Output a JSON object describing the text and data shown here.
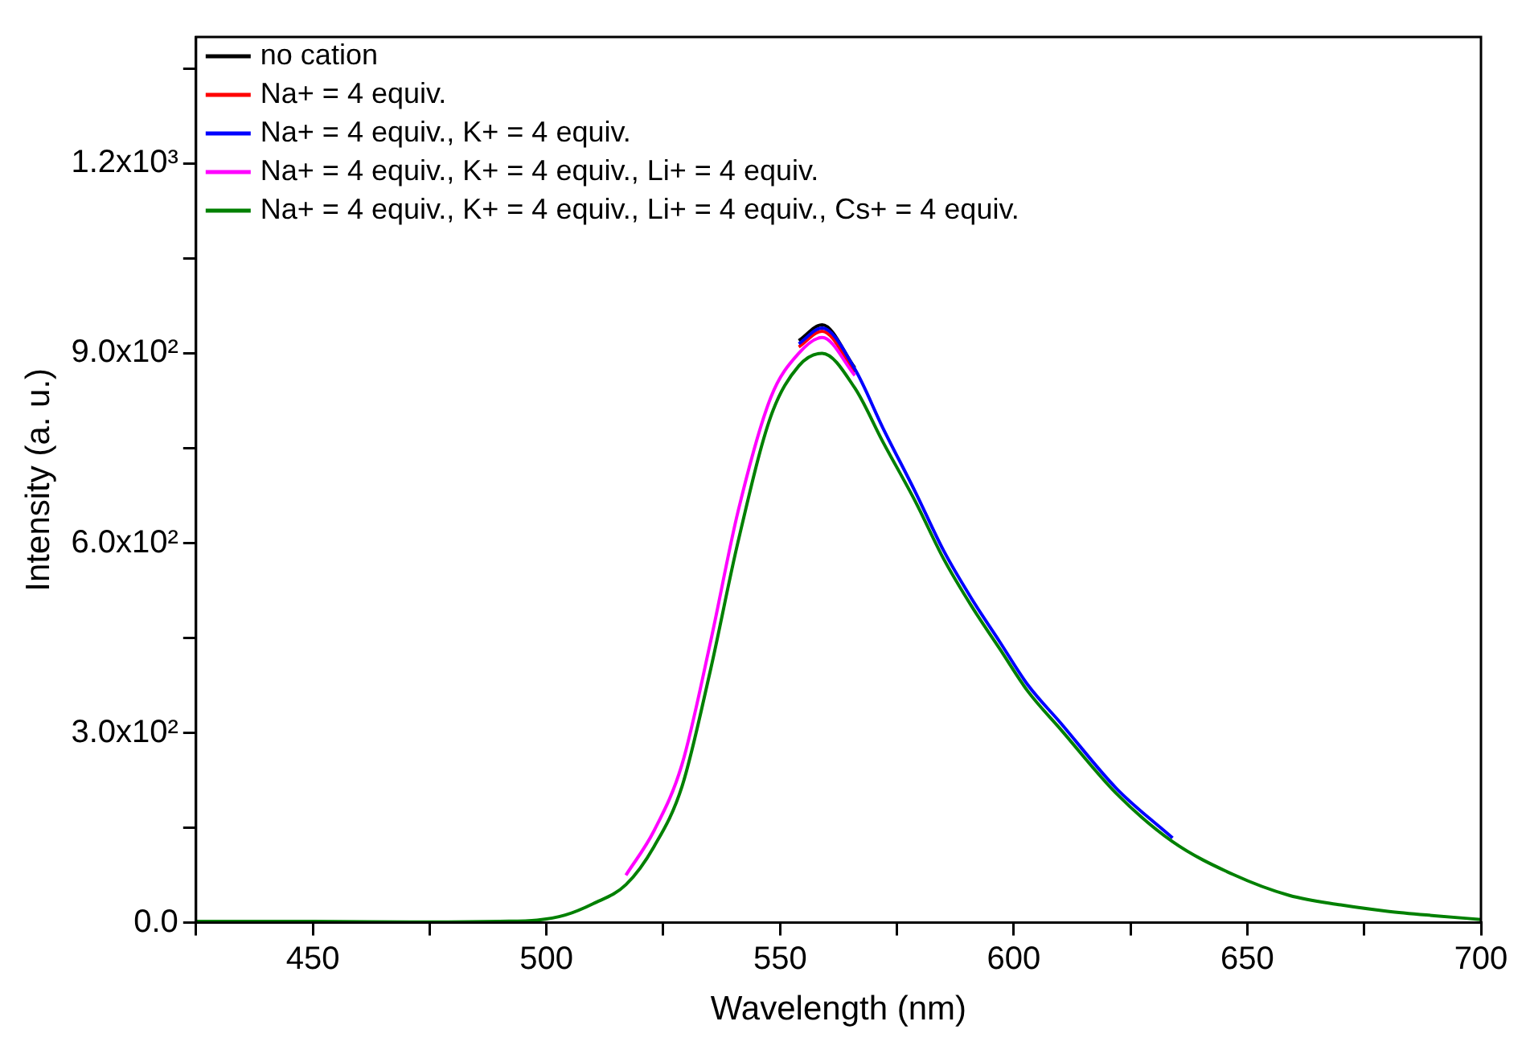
{
  "chart_data": {
    "type": "line",
    "xlabel": "Wavelength (nm)",
    "ylabel": "Intensity (a. u.)",
    "x": [
      425,
      450,
      475,
      490,
      498,
      504,
      510,
      517,
      523,
      529,
      535,
      541,
      548,
      554,
      559,
      566,
      572,
      579,
      585,
      591,
      597,
      603,
      610,
      622,
      634,
      647,
      659,
      670,
      680,
      690,
      700
    ],
    "series": [
      {
        "name": "no cation",
        "color": "#000000",
        "values": [
          null,
          null,
          null,
          null,
          null,
          null,
          null,
          null,
          null,
          null,
          null,
          null,
          null,
          920,
          945,
          877,
          null,
          null,
          null,
          null,
          null,
          null,
          null,
          null,
          null,
          null,
          null,
          null,
          null,
          null,
          null
        ]
      },
      {
        "name": "Na+ = 4 equiv.",
        "color": "#ff0000",
        "values": [
          null,
          null,
          null,
          null,
          null,
          null,
          null,
          null,
          null,
          null,
          null,
          null,
          null,
          910,
          935,
          870,
          null,
          null,
          null,
          null,
          null,
          null,
          null,
          null,
          null,
          null,
          null,
          null,
          null,
          null,
          null
        ]
      },
      {
        "name": "Na+ = 4 equiv., K+ = 4 equiv.",
        "color": "#0000ff",
        "values": [
          null,
          null,
          null,
          null,
          null,
          null,
          null,
          null,
          null,
          null,
          null,
          null,
          null,
          915,
          940,
          875,
          782,
          680,
          588,
          512,
          444,
          376,
          316,
          212,
          134,
          null,
          null,
          null,
          null,
          null,
          null
        ]
      },
      {
        "name": "Na+ = 4 equiv., K+ = 4 equiv., Li+ = 4 equiv.",
        "color": "#ff00ff",
        "values": [
          null,
          null,
          null,
          null,
          null,
          null,
          null,
          75,
          145,
          250,
          440,
          650,
          830,
          900,
          925,
          865,
          null,
          null,
          null,
          null,
          null,
          null,
          null,
          null,
          null,
          null,
          null,
          null,
          null,
          null,
          null
        ]
      },
      {
        "name": "Na+ = 4 equiv., K+ = 4 equiv., Li+ = 4 equiv., Cs+ = 4 equiv.",
        "color": "#008000",
        "values": [
          2,
          2,
          1,
          2,
          4,
          12,
          30,
          60,
          120,
          215,
          396,
          602,
          800,
          880,
          900,
          845,
          760,
          665,
          575,
          500,
          433,
          366,
          306,
          204,
          128,
          76,
          43,
          28,
          18,
          11,
          5
        ]
      }
    ],
    "xlim": [
      425,
      700
    ],
    "xticks": [
      {
        "value": 425,
        "label": null
      },
      450,
      {
        "value": 475,
        "label": null
      },
      500,
      {
        "value": 525,
        "label": null
      },
      550,
      {
        "value": 575,
        "label": null
      },
      600,
      {
        "value": 625,
        "label": null
      },
      650,
      {
        "value": 675,
        "label": null
      },
      700
    ],
    "ylim": [
      0,
      1400
    ],
    "yticks": [
      {
        "value": 0,
        "label": "0.0"
      },
      {
        "value": 150,
        "label": null
      },
      {
        "value": 300,
        "label": "3.0x10²"
      },
      {
        "value": 450,
        "label": null
      },
      {
        "value": 600,
        "label": "6.0x10²"
      },
      {
        "value": 750,
        "label": null
      },
      {
        "value": 900,
        "label": "9.0x10²"
      },
      {
        "value": 1050,
        "label": null
      },
      {
        "value": 1200,
        "label": "1.2x10³"
      },
      {
        "value": 1350,
        "label": null
      }
    ],
    "grid": false,
    "legend": "top left",
    "marker": "none",
    "line_style": "solid"
  }
}
